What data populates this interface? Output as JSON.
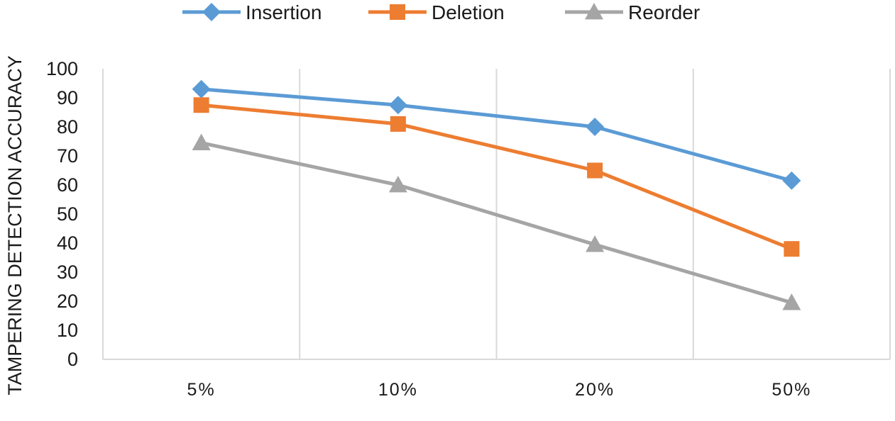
{
  "chart_data": {
    "type": "line",
    "title": "",
    "xlabel": "",
    "ylabel": "TAMPERING DETECTION ACCURACY",
    "categories": [
      "5%",
      "10%",
      "20%",
      "50%"
    ],
    "ylim": [
      0,
      100
    ],
    "yticks": [
      0,
      10,
      20,
      30,
      40,
      50,
      60,
      70,
      80,
      90,
      100
    ],
    "grid": "vertical",
    "legend": "top",
    "series": [
      {
        "name": "Insertion",
        "values": [
          93,
          87.5,
          80,
          61.5
        ],
        "color": "#5b9bd5",
        "marker": "diamond"
      },
      {
        "name": "Deletion",
        "values": [
          87.5,
          81,
          65,
          38
        ],
        "color": "#ed7d31",
        "marker": "square"
      },
      {
        "name": "Reorder",
        "values": [
          74.5,
          60,
          39.5,
          19.5
        ],
        "color": "#a5a5a5",
        "marker": "triangle"
      }
    ]
  }
}
